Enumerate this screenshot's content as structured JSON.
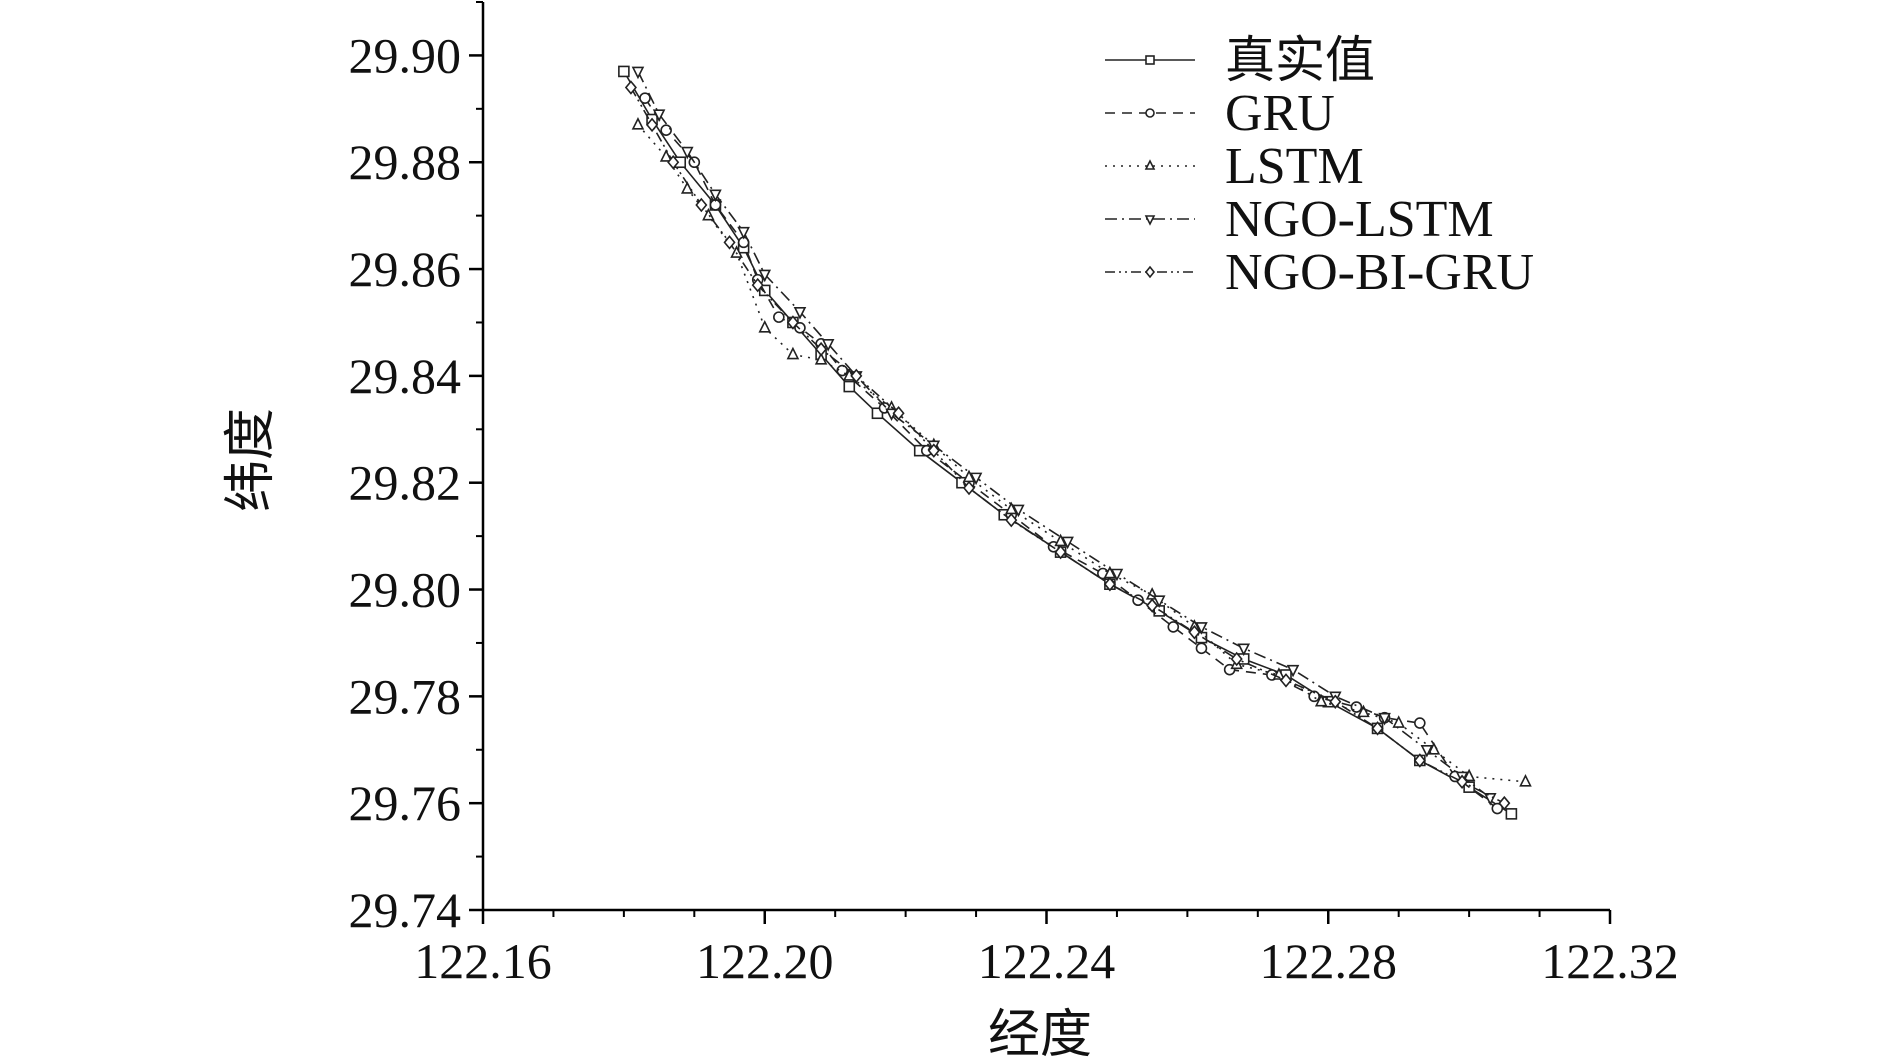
{
  "chart_data": {
    "type": "line",
    "xlabel": "经度",
    "ylabel": "纬度",
    "xlim": [
      122.16,
      122.32
    ],
    "ylim": [
      29.74,
      29.91
    ],
    "xticks": [
      "122.16",
      "122.20",
      "122.24",
      "122.28",
      "122.32"
    ],
    "xtick_values": [
      122.16,
      122.2,
      122.24,
      122.28,
      122.32
    ],
    "yticks": [
      "29.74",
      "29.76",
      "29.78",
      "29.80",
      "29.82",
      "29.84",
      "29.86",
      "29.88",
      "29.90"
    ],
    "ytick_values": [
      29.74,
      29.76,
      29.78,
      29.8,
      29.82,
      29.84,
      29.86,
      29.88,
      29.9
    ],
    "grid": false,
    "legend_position": "top-right",
    "series": [
      {
        "name": "真实值",
        "marker": "square",
        "dash": "solid",
        "x": [
          122.18,
          122.184,
          122.188,
          122.193,
          122.197,
          122.2,
          122.204,
          122.208,
          122.212,
          122.216,
          122.222,
          122.228,
          122.234,
          122.242,
          122.249,
          122.256,
          122.262,
          122.268,
          122.274,
          122.28,
          122.287,
          122.293,
          122.3,
          122.306
        ],
        "y": [
          29.897,
          29.888,
          29.88,
          29.872,
          29.864,
          29.856,
          29.85,
          29.844,
          29.838,
          29.833,
          29.826,
          29.82,
          29.814,
          29.807,
          29.801,
          29.796,
          29.791,
          29.787,
          29.784,
          29.779,
          29.774,
          29.768,
          29.763,
          29.758
        ]
      },
      {
        "name": "GRU",
        "marker": "circle",
        "dash": "dashed",
        "x": [
          122.183,
          122.186,
          122.19,
          122.193,
          122.197,
          122.199,
          122.202,
          122.205,
          122.208,
          122.211,
          122.217,
          122.223,
          122.229,
          122.235,
          122.241,
          122.248,
          122.253,
          122.258,
          122.262,
          122.266,
          122.272,
          122.278,
          122.284,
          122.288,
          122.293,
          122.298,
          122.304
        ],
        "y": [
          29.892,
          29.886,
          29.88,
          29.872,
          29.865,
          29.858,
          29.851,
          29.849,
          29.846,
          29.841,
          29.834,
          29.826,
          29.82,
          29.814,
          29.808,
          29.803,
          29.798,
          29.793,
          29.789,
          29.785,
          29.784,
          29.78,
          29.778,
          29.776,
          29.775,
          29.765,
          29.759
        ]
      },
      {
        "name": "LSTM",
        "marker": "triangle-up",
        "dash": "dotted",
        "x": [
          122.182,
          122.186,
          122.189,
          122.192,
          122.196,
          122.2,
          122.204,
          122.208,
          122.212,
          122.218,
          122.224,
          122.229,
          122.235,
          122.242,
          122.249,
          122.255,
          122.261,
          122.267,
          122.273,
          122.279,
          122.285,
          122.29,
          122.295,
          122.3,
          122.308
        ],
        "y": [
          29.887,
          29.881,
          29.875,
          29.87,
          29.863,
          29.849,
          29.844,
          29.843,
          29.84,
          29.834,
          29.827,
          29.821,
          29.815,
          29.809,
          29.803,
          29.799,
          29.793,
          29.786,
          29.784,
          29.779,
          29.777,
          29.775,
          29.77,
          29.765,
          29.764
        ]
      },
      {
        "name": "NGO-LSTM",
        "marker": "triangle-down",
        "dash": "dashdot",
        "x": [
          122.182,
          122.185,
          122.189,
          122.193,
          122.197,
          122.2,
          122.205,
          122.209,
          122.213,
          122.218,
          122.224,
          122.23,
          122.236,
          122.243,
          122.25,
          122.256,
          122.262,
          122.268,
          122.275,
          122.281,
          122.288,
          122.294,
          122.299,
          122.303
        ],
        "y": [
          29.897,
          29.889,
          29.882,
          29.874,
          29.867,
          29.859,
          29.852,
          29.846,
          29.84,
          29.833,
          29.827,
          29.821,
          29.815,
          29.809,
          29.803,
          29.798,
          29.793,
          29.789,
          29.785,
          29.78,
          29.776,
          29.77,
          29.765,
          29.761
        ]
      },
      {
        "name": "NGO-BI-GRU",
        "marker": "diamond",
        "dash": "dashdotdot",
        "x": [
          122.181,
          122.184,
          122.187,
          122.191,
          122.195,
          122.199,
          122.204,
          122.208,
          122.213,
          122.219,
          122.224,
          122.229,
          122.235,
          122.242,
          122.249,
          122.255,
          122.261,
          122.267,
          122.274,
          122.281,
          122.287,
          122.293,
          122.299,
          122.305
        ],
        "y": [
          29.894,
          29.887,
          29.88,
          29.872,
          29.865,
          29.857,
          29.85,
          29.845,
          29.84,
          29.833,
          29.826,
          29.819,
          29.813,
          29.807,
          29.801,
          29.797,
          29.792,
          29.787,
          29.783,
          29.779,
          29.774,
          29.768,
          29.764,
          29.76
        ]
      }
    ]
  }
}
